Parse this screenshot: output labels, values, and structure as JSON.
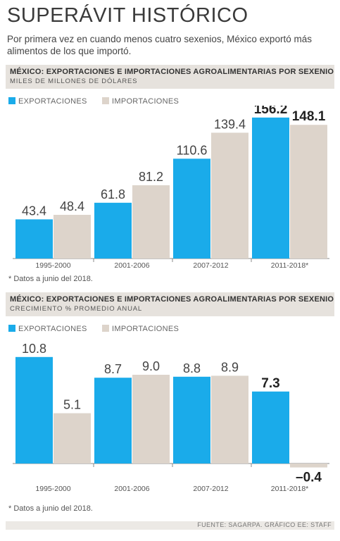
{
  "header": {
    "title": "SUPERÁVIT HISTÓRICO",
    "subtitle": "Por primera vez en cuando menos cuatro sexenios, México exportó más alimentos de los que importó."
  },
  "colors": {
    "exports": "#1aabea",
    "imports": "#ddd4cb",
    "band": "#e6e2dd"
  },
  "legend": {
    "exports": "EXPORTACIONES",
    "imports": "IMPORTACIONES"
  },
  "chart_data": [
    {
      "type": "bar",
      "title": "MÉXICO: EXPORTACIONES E IMPORTACIONES AGROALIMENTARIAS POR SEXENIO",
      "subtitle": "MILES DE MILLONES DE DÓLARES",
      "categories": [
        "1995-2000",
        "2001-2006",
        "2007-2012",
        "2011-2018*"
      ],
      "series": [
        {
          "name": "EXPORTACIONES",
          "values": [
            43.4,
            61.8,
            110.6,
            156.2
          ]
        },
        {
          "name": "IMPORTACIONES",
          "values": [
            48.4,
            81.2,
            139.4,
            148.1
          ]
        }
      ],
      "value_labels": {
        "exports": [
          "43.4",
          "61.8",
          "110.6",
          "156.2"
        ],
        "imports": [
          "48.4",
          "81.2",
          "139.4",
          "148.1"
        ]
      },
      "highlight_last": true,
      "ylim": [
        0,
        160
      ],
      "note": "* Datos a junio del 2018."
    },
    {
      "type": "bar",
      "title": "MÉXICO: EXPORTACIONES E IMPORTACIONES AGROALIMENTARIAS POR SEXENIO",
      "subtitle": "CRECIMIENTO % PROMEDIO ANUAL",
      "categories": [
        "1995-2000",
        "2001-2006",
        "2007-2012",
        "2011-2018*"
      ],
      "series": [
        {
          "name": "EXPORTACIONES",
          "values": [
            10.8,
            8.7,
            8.8,
            7.3
          ]
        },
        {
          "name": "IMPORTACIONES",
          "values": [
            5.1,
            9.0,
            8.9,
            -0.4
          ]
        }
      ],
      "value_labels": {
        "exports": [
          "10.8",
          "8.7",
          "8.8",
          "7.3"
        ],
        "imports": [
          "5.1",
          "9.0",
          "8.9",
          "–0.4"
        ]
      },
      "highlight_last": true,
      "ylim": [
        -1,
        11
      ],
      "note": "* Datos a junio del 2018."
    }
  ],
  "footer": {
    "source": "FUENTE: SAGARPA. GRÁFICO EE: STAFF"
  }
}
